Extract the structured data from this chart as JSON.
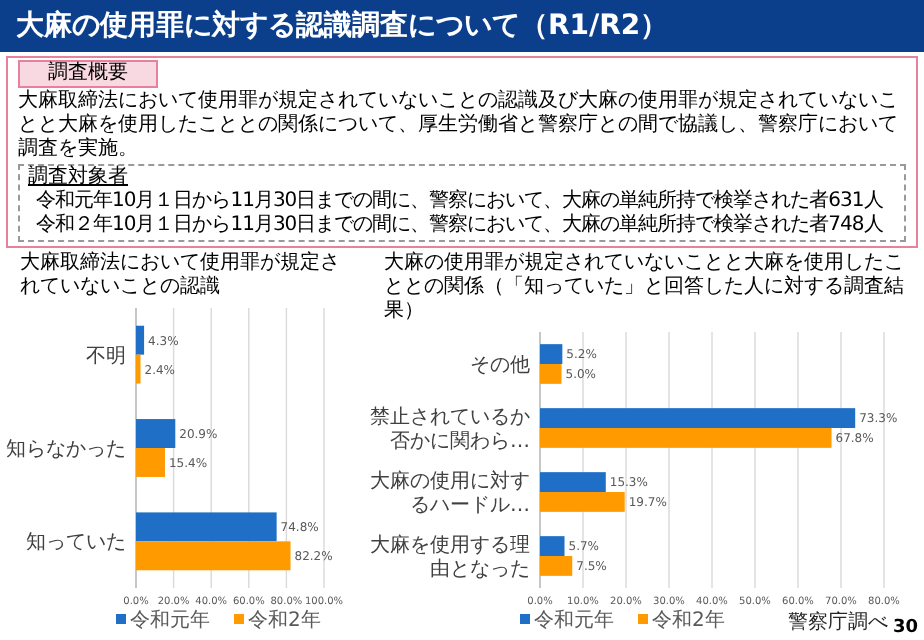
{
  "chart_data": [
    {
      "type": "other",
      "title": "大麻の使用罪に対する認識調査について（R1/R2）",
      "annotations": [
        "調査概要",
        "大麻取締法において使用罪が規定されていないことの認識及び大麻の使用罪が規定されていないことと大麻を使用したこととの関係について、厚生労働省と警察庁との間で協議し、警察庁において調査を実施。",
        "調査対象者",
        "令和元年10月１日から11月30日までの間に、警察において、大麻の単純所持で検挙された者631人",
        "令和２年10月１日から11月30日までの間に、警察において、大麻の単純所持で検挙された者748人",
        "30"
      ]
    },
    {
      "type": "bar",
      "orientation": "horizontal",
      "title": "大麻取締法において使用罪が規定されていないことの認識",
      "categories": [
        "不明",
        "知らなかった",
        "知っていた"
      ],
      "series": [
        {
          "name": "令和元年",
          "color": "#1f6fc6",
          "values": [
            4.3,
            20.9,
            74.8
          ],
          "value_labels": [
            "4.3%",
            "20.9%",
            "74.8%"
          ]
        },
        {
          "name": "令和2年",
          "color": "#ff9a00",
          "values": [
            2.4,
            15.4,
            82.2
          ],
          "value_labels": [
            "2.4%",
            "15.4%",
            "82.2%"
          ]
        }
      ],
      "xlim": [
        0,
        100
      ],
      "xticks": [
        {
          "value": 0,
          "label": "0.0%"
        },
        {
          "value": 20,
          "label": "20.0%"
        },
        {
          "value": 40,
          "label": "40.0%"
        },
        {
          "value": 60,
          "label": "60.0%"
        },
        {
          "value": 80,
          "label": "80.0%"
        },
        {
          "value": 100,
          "label": "100.0%"
        }
      ],
      "grid": "x",
      "legend": "bottom"
    },
    {
      "type": "bar",
      "orientation": "horizontal",
      "title": "大麻の使用罪が規定されていないことと大麻を使用したこととの関係（「知っていた」と回答した人に対する調査結果）",
      "categories": [
        "その他",
        "禁止されているか否かに関わら…",
        "大麻の使用に対するハードル…",
        "大麻を使用する理由となった"
      ],
      "series": [
        {
          "name": "令和元年",
          "color": "#1f6fc6",
          "values": [
            5.2,
            73.3,
            15.3,
            5.7
          ],
          "value_labels": [
            "5.2%",
            "73.3%",
            "15.3%",
            "5.7%"
          ]
        },
        {
          "name": "令和2年",
          "color": "#ff9a00",
          "values": [
            5.0,
            67.8,
            19.7,
            7.5
          ],
          "value_labels": [
            "5.0%",
            "67.8%",
            "19.7%",
            "7.5%"
          ]
        }
      ],
      "xlim": [
        0,
        80
      ],
      "xticks": [
        {
          "value": 0,
          "label": "0.0%"
        },
        {
          "value": 10,
          "label": "10.0%"
        },
        {
          "value": 20,
          "label": "20.0%"
        },
        {
          "value": 30,
          "label": "30.0%"
        },
        {
          "value": 40,
          "label": "40.0%"
        },
        {
          "value": 50,
          "label": "50.0%"
        },
        {
          "value": 60,
          "label": "60.0%"
        },
        {
          "value": 70,
          "label": "70.0%"
        },
        {
          "value": 80,
          "label": "80.0%"
        }
      ],
      "grid": "x",
      "legend": "bottom",
      "annotations": [
        "警察庁調べ"
      ]
    }
  ]
}
